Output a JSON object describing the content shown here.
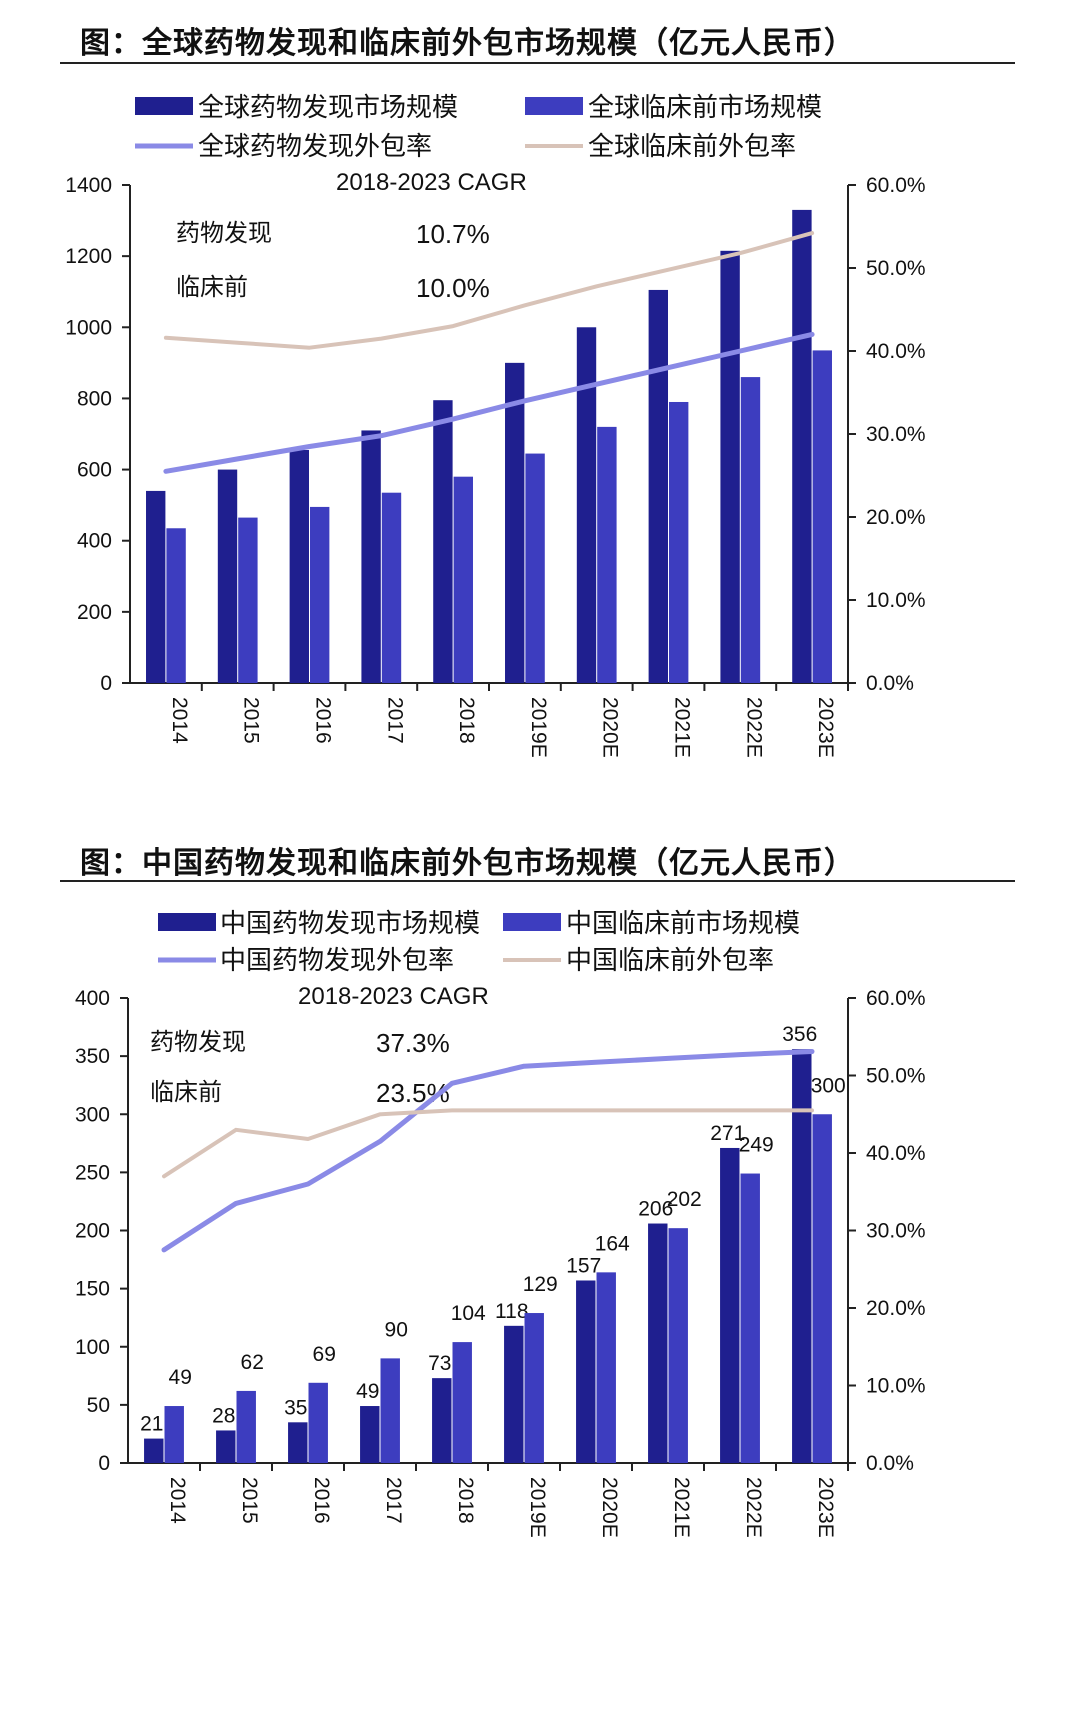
{
  "figures": [
    {
      "title": "图：全球药物发现和临床前外包市场规模（亿元人民币）",
      "legend": {
        "bar1": "全球药物发现市场规模",
        "bar2": "全球临床前市场规模",
        "line1": "全球药物发现外包率",
        "line2": "全球临床前外包率"
      },
      "cagr": {
        "title": "2018-2023  CAGR",
        "row1_label": "药物发现",
        "row1_value": "10.7%",
        "row2_label": "临床前",
        "row2_value": "10.0%"
      }
    },
    {
      "title": "图：中国药物发现和临床前外包市场规模（亿元人民币）",
      "legend": {
        "bar1": "中国药物发现市场规模",
        "bar2": "中国临床前市场规模",
        "line1": "中国药物发现外包率",
        "line2": "中国临床前外包率"
      },
      "cagr": {
        "title": "2018-2023  CAGR",
        "row1_label": "药物发现",
        "row1_value": "37.3%",
        "row2_label": "临床前",
        "row2_value": "23.5%"
      }
    }
  ],
  "colors": {
    "bar1": "#1f1f8f",
    "bar2": "#3d3dbf",
    "line1": "#8a8ae6",
    "line2": "#d8c3b8",
    "axis": "#222222"
  },
  "chart_data": [
    {
      "type": "bar",
      "categories": [
        "2014",
        "2015",
        "2016",
        "2017",
        "2018",
        "2019E",
        "2020E",
        "2021E",
        "2022E",
        "2023E"
      ],
      "ylim": [
        0,
        1400
      ],
      "y2lim": [
        0,
        0.6
      ],
      "yticks": [
        0,
        200,
        400,
        600,
        800,
        1000,
        1200,
        1400
      ],
      "y2ticks": [
        "0.0%",
        "10.0%",
        "20.0%",
        "30.0%",
        "40.0%",
        "50.0%",
        "60.0%"
      ],
      "series": [
        {
          "name": "全球药物发现市场规模",
          "type": "bar",
          "axis": "left",
          "values": [
            540,
            600,
            655,
            710,
            795,
            900,
            1000,
            1105,
            1215,
            1330
          ]
        },
        {
          "name": "全球临床前市场规模",
          "type": "bar",
          "axis": "left",
          "values": [
            435,
            465,
            495,
            535,
            580,
            645,
            720,
            790,
            860,
            935
          ]
        },
        {
          "name": "全球药物发现外包率",
          "type": "line",
          "axis": "right",
          "values": [
            0.255,
            0.27,
            0.285,
            0.298,
            0.318,
            0.34,
            0.36,
            0.38,
            0.4,
            0.42
          ]
        },
        {
          "name": "全球临床前外包率",
          "type": "line",
          "axis": "right",
          "values": [
            0.416,
            0.41,
            0.404,
            0.415,
            0.43,
            0.455,
            0.478,
            0.498,
            0.518,
            0.542
          ]
        }
      ],
      "data_labels": false,
      "grid": false,
      "legend": "top"
    },
    {
      "type": "bar",
      "categories": [
        "2014",
        "2015",
        "2016",
        "2017",
        "2018",
        "2019E",
        "2020E",
        "2021E",
        "2022E",
        "2023E"
      ],
      "ylim": [
        0,
        400
      ],
      "y2lim": [
        0,
        0.6
      ],
      "yticks": [
        0,
        50,
        100,
        150,
        200,
        250,
        300,
        350,
        400
      ],
      "y2ticks": [
        "0.0%",
        "10.0%",
        "20.0%",
        "30.0%",
        "40.0%",
        "50.0%",
        "60.0%"
      ],
      "series": [
        {
          "name": "中国药物发现市场规模",
          "type": "bar",
          "axis": "left",
          "values": [
            21,
            28,
            35,
            49,
            73,
            118,
            157,
            206,
            271,
            356
          ]
        },
        {
          "name": "中国临床前市场规模",
          "type": "bar",
          "axis": "left",
          "values": [
            49,
            62,
            69,
            90,
            104,
            129,
            164,
            202,
            249,
            300
          ]
        },
        {
          "name": "中国药物发现外包率",
          "type": "line",
          "axis": "right",
          "values": [
            0.275,
            0.335,
            0.36,
            0.415,
            0.49,
            0.512,
            0.517,
            0.522,
            0.527,
            0.531
          ]
        },
        {
          "name": "中国临床前外包率",
          "type": "line",
          "axis": "right",
          "values": [
            0.37,
            0.43,
            0.418,
            0.45,
            0.455,
            0.455,
            0.455,
            0.455,
            0.455,
            0.455
          ]
        }
      ],
      "data_labels": true,
      "grid": false,
      "legend": "top"
    }
  ]
}
